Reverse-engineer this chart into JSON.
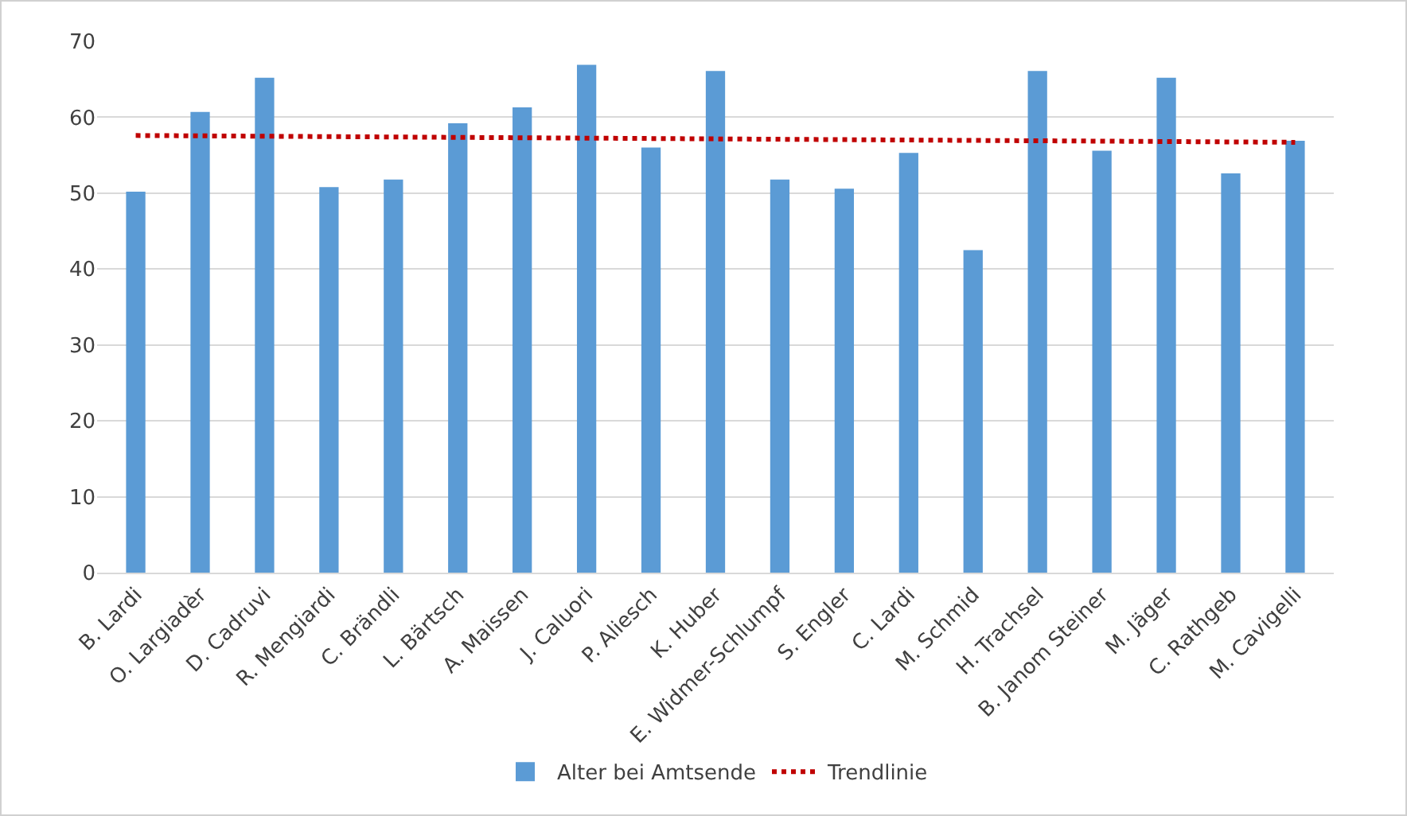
{
  "chart_data": {
    "type": "bar",
    "categories": [
      "B. Lardi",
      "O. Largiadèr",
      "D. Cadruvi",
      "R. Mengiardi",
      "C. Brändli",
      "L. Bärtsch",
      "A. Maissen",
      "J. Caluori",
      "P. Aliesch",
      "K. Huber",
      "E. Widmer-Schlumpf",
      "S. Engler",
      "C. Lardi",
      "M. Schmid",
      "H. Trachsel",
      "B. Janom Steiner",
      "M. Jäger",
      "C. Rathgeb",
      "M. Cavigelli"
    ],
    "series": [
      {
        "name": "Alter bei Amtsende",
        "color": "#5b9bd5",
        "values": [
          50.2,
          60.7,
          65.2,
          50.8,
          51.8,
          59.2,
          61.3,
          66.9,
          56.0,
          66.1,
          51.8,
          50.6,
          55.3,
          42.5,
          66.1,
          55.6,
          65.2,
          52.6,
          56.9
        ]
      },
      {
        "name": "Trendlinie",
        "type": "line",
        "color": "#c00000",
        "line_style": "dotted",
        "x": [
          "B. Lardi",
          "M. Cavigelli"
        ],
        "values": [
          57.6,
          56.7
        ]
      }
    ],
    "ylim": [
      0,
      70
    ],
    "yticks": [
      0,
      10,
      20,
      30,
      40,
      50,
      60,
      70
    ],
    "grid": "y",
    "legend": "bottom"
  }
}
